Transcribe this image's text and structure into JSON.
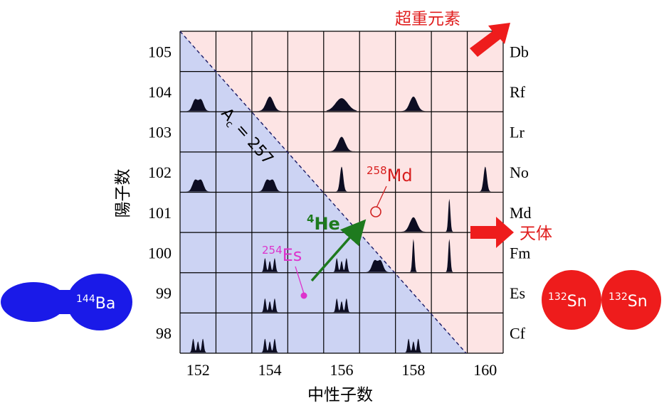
{
  "x_axis": {
    "title": "中性子数",
    "tick_labels": [
      "152",
      "154",
      "156",
      "158",
      "160"
    ],
    "range": [
      151.5,
      160.5
    ]
  },
  "y_axis": {
    "title": "陽子数",
    "tick_labels": [
      "105",
      "104",
      "103",
      "102",
      "101",
      "100",
      "99",
      "98"
    ],
    "range": [
      97.5,
      105.5
    ]
  },
  "elements": [
    "Db",
    "Rf",
    "Lr",
    "No",
    "Md",
    "Fm",
    "Es",
    "Cf"
  ],
  "diagonal_label": {
    "A": "A",
    "sub": "c",
    "rest": " = 257"
  },
  "labels": {
    "superheavy": "超重元素",
    "celestial": "天体",
    "md258_mass": "258",
    "md258_sym": "Md",
    "es254_mass": "254",
    "es254_sym": "Es",
    "he4_mass": "4",
    "he4_sym": "He",
    "ba144_mass": "144",
    "ba144_sym": "Ba",
    "sn132a_mass": "132",
    "sn132a_sym": "Sn",
    "sn132b_mass": "132",
    "sn132b_sym": "Sn"
  },
  "colors": {
    "lower_region": "#ccd3f3",
    "upper_region": "#fde4e4",
    "dark": "#0d0d22",
    "green": "#1e7a1e",
    "magenta": "#dd33cc",
    "red": "#e01e1e",
    "blue": "#1a1ae8",
    "sn_red": "#ee1c1c"
  },
  "chart_data": {
    "type": "heatmap",
    "note_type": "fission fragment mass distribution shapes per nucleus",
    "nuclei": [
      {
        "N": 152,
        "Z": 104,
        "shape": "double"
      },
      {
        "N": 154,
        "Z": 104,
        "shape": "single"
      },
      {
        "N": 156,
        "Z": 104,
        "shape": "broad"
      },
      {
        "N": 158,
        "Z": 104,
        "shape": "single"
      },
      {
        "N": 156,
        "Z": 103,
        "shape": "single"
      },
      {
        "N": 152,
        "Z": 102,
        "shape": "double"
      },
      {
        "N": 154,
        "Z": 102,
        "shape": "double"
      },
      {
        "N": 156,
        "Z": 102,
        "shape": "sharp"
      },
      {
        "N": 160,
        "Z": 102,
        "shape": "sharp"
      },
      {
        "N": 158,
        "Z": 101,
        "shape": "single"
      },
      {
        "N": 159,
        "Z": 101,
        "shape": "verysharp"
      },
      {
        "N": 154,
        "Z": 100,
        "shape": "triple"
      },
      {
        "N": 156,
        "Z": 100,
        "shape": "triple"
      },
      {
        "N": 157,
        "Z": 100,
        "shape": "double"
      },
      {
        "N": 158,
        "Z": 100,
        "shape": "verysharp"
      },
      {
        "N": 159,
        "Z": 100,
        "shape": "verysharp"
      },
      {
        "N": 154,
        "Z": 99,
        "shape": "triple"
      },
      {
        "N": 156,
        "Z": 99,
        "shape": "triple"
      },
      {
        "N": 152,
        "Z": 98,
        "shape": "triple"
      },
      {
        "N": 154,
        "Z": 98,
        "shape": "triple"
      },
      {
        "N": 158,
        "Z": 98,
        "shape": "triple"
      }
    ],
    "markers": [
      {
        "label": "258Md",
        "N": 157,
        "Z": 101
      },
      {
        "label": "254Es",
        "N": 155,
        "Z": 99
      }
    ]
  }
}
